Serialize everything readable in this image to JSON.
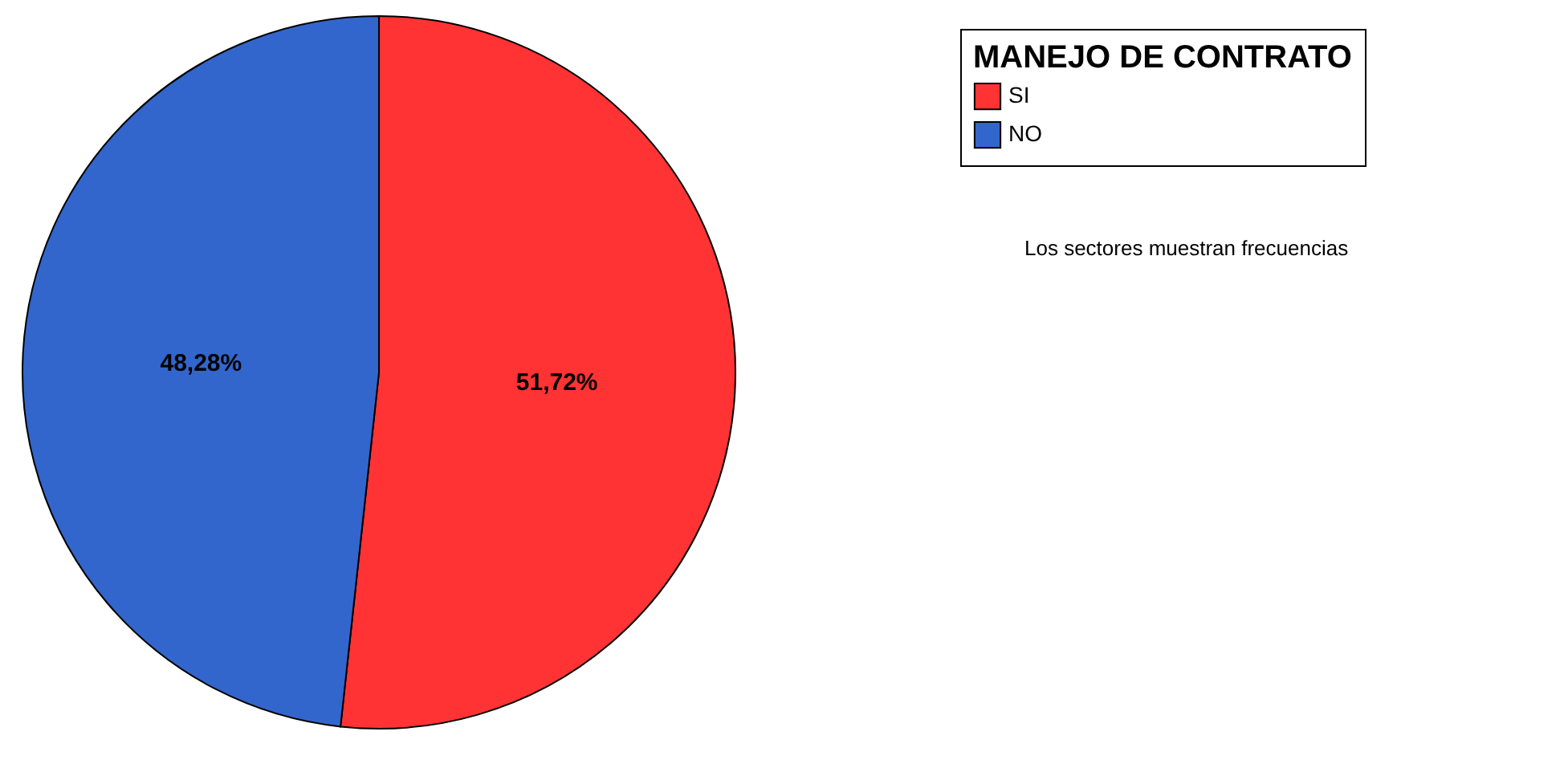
{
  "chart_data": {
    "type": "pie",
    "legend_title": "MANEJO DE CONTRATO",
    "categories": [
      "SI",
      "NO"
    ],
    "values": [
      51.72,
      48.28
    ],
    "colors": [
      "#ff3333",
      "#3366cc"
    ],
    "value_labels": [
      "51,72%",
      "48,28%"
    ],
    "legend": "top right",
    "annotations": [
      "Los sectores muestran frecuencias"
    ]
  }
}
